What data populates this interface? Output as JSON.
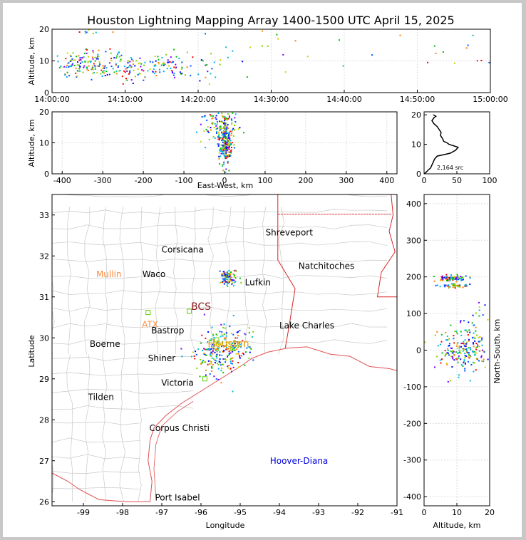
{
  "title": "Houston Lightning Mapping Array 1400-1500 UTC April 15, 2025",
  "colors": {
    "background": "#ffffff",
    "frame": "#c8c8c8",
    "county_lines": "#c8c8c8",
    "state_border": "#d62728",
    "coastline": "#e05050",
    "city_label": "#000000"
  },
  "chart_data": [
    {
      "id": "time-height",
      "type": "scatter",
      "xlabel": "",
      "ylabel": "Altitude, km",
      "x_tick_labels": [
        "14:00:00",
        "14:10:00",
        "14:20:00",
        "14:30:00",
        "14:40:00",
        "14:50:00",
        "15:00:00"
      ],
      "xlim_minutes": [
        0,
        60
      ],
      "ylim": [
        0,
        20
      ],
      "yticks": [
        0,
        10,
        20
      ],
      "grid": true,
      "clusters": [
        {
          "x": 3,
          "y": 9,
          "sx": 1.2,
          "sy": 2.5,
          "n": 60
        },
        {
          "x": 6,
          "y": 9,
          "sx": 1.3,
          "sy": 2.3,
          "n": 70
        },
        {
          "x": 9.5,
          "y": 8.5,
          "sx": 1.4,
          "sy": 2.2,
          "n": 55
        },
        {
          "x": 13,
          "y": 8.5,
          "sx": 1.5,
          "sy": 2.0,
          "n": 50
        },
        {
          "x": 17,
          "y": 8.5,
          "sx": 1.3,
          "sy": 2.5,
          "n": 35
        },
        {
          "x": 21,
          "y": 8,
          "sx": 1.5,
          "sy": 3.0,
          "n": 18
        },
        {
          "x": 27,
          "y": 12,
          "sx": 3.0,
          "sy": 4.0,
          "n": 12
        },
        {
          "x": 36,
          "y": 14,
          "sx": 3.0,
          "sy": 4.0,
          "n": 6
        },
        {
          "x": 52,
          "y": 12,
          "sx": 4.0,
          "sy": 4.0,
          "n": 8
        },
        {
          "x": 58,
          "y": 12,
          "sx": 1.5,
          "sy": 4.0,
          "n": 6
        },
        {
          "x": 5,
          "y": 19.5,
          "sx": 2.0,
          "sy": 0.5,
          "n": 8
        }
      ]
    },
    {
      "id": "east-west-height",
      "type": "scatter",
      "xlabel": "East-West, km",
      "ylabel": "Altitude, km",
      "xlim": [
        -425,
        425
      ],
      "xticks": [
        -400,
        -300,
        -200,
        -100,
        0,
        100,
        200,
        300,
        400
      ],
      "ylim": [
        0,
        20
      ],
      "yticks": [
        0,
        10,
        20
      ],
      "grid": true,
      "clusters": [
        {
          "x": 0,
          "y": 8.5,
          "sx": 4,
          "sy": 1.2,
          "n": 60,
          "dense": true
        },
        {
          "x": 0,
          "y": 11,
          "sx": 10,
          "sy": 4.0,
          "n": 220
        },
        {
          "x": -10,
          "y": 16,
          "sx": 25,
          "sy": 3.0,
          "n": 80
        }
      ]
    },
    {
      "id": "altitude-histogram",
      "type": "line",
      "xlabel": "",
      "ylabel": "",
      "annotation": "2,164 src",
      "xlim": [
        0,
        100
      ],
      "xticks": [
        0,
        50,
        100
      ],
      "ylim": [
        0,
        21
      ],
      "yticks": [
        0,
        10,
        20
      ],
      "profile": [
        [
          0,
          0
        ],
        [
          3,
          0.5
        ],
        [
          6,
          1.2
        ],
        [
          10,
          2
        ],
        [
          12,
          3
        ],
        [
          14,
          4
        ],
        [
          16,
          5
        ],
        [
          20,
          6
        ],
        [
          30,
          6.5
        ],
        [
          40,
          7
        ],
        [
          48,
          8
        ],
        [
          52,
          9
        ],
        [
          45,
          9.5
        ],
        [
          38,
          10
        ],
        [
          35,
          10.5
        ],
        [
          30,
          11
        ],
        [
          28,
          12
        ],
        [
          25,
          13
        ],
        [
          26,
          14
        ],
        [
          23,
          15
        ],
        [
          20,
          16
        ],
        [
          15,
          17
        ],
        [
          12,
          18
        ],
        [
          15,
          19
        ],
        [
          18,
          19.5
        ],
        [
          14,
          20
        ]
      ]
    },
    {
      "id": "plan-view",
      "type": "scatter",
      "xlabel": "Longitude",
      "ylabel": "Latitude",
      "xlim": [
        -99.8,
        -91
      ],
      "xticks": [
        -99,
        -98,
        -97,
        -96,
        -95,
        -94,
        -93,
        -92,
        -91
      ],
      "ylim": [
        25.9,
        33.5
      ],
      "yticks": [
        26,
        27,
        28,
        29,
        30,
        31,
        32,
        33
      ],
      "cities": [
        {
          "name": "Shreveport",
          "lon": -93.75,
          "lat": 32.57,
          "color": "#000000"
        },
        {
          "name": "Corsicana",
          "lon": -96.47,
          "lat": 32.15,
          "color": "#000000"
        },
        {
          "name": "Natchitoches",
          "lon": -92.8,
          "lat": 31.75,
          "color": "#000000"
        },
        {
          "name": "Mullin",
          "lon": -98.35,
          "lat": 31.55,
          "color": "#ff8c40"
        },
        {
          "name": "Waco",
          "lon": -97.2,
          "lat": 31.55,
          "color": "#000000"
        },
        {
          "name": "Lufkin",
          "lon": -94.55,
          "lat": 31.35,
          "color": "#000000"
        },
        {
          "name": "BCS",
          "lon": -96.0,
          "lat": 30.75,
          "color": "#8b1a1a"
        },
        {
          "name": "ATX",
          "lon": -97.3,
          "lat": 30.33,
          "color": "#ff8c40"
        },
        {
          "name": "Bastrop",
          "lon": -96.85,
          "lat": 30.18,
          "color": "#000000"
        },
        {
          "name": "Lake Charles",
          "lon": -93.3,
          "lat": 30.3,
          "color": "#000000"
        },
        {
          "name": "Boerne",
          "lon": -98.45,
          "lat": 29.85,
          "color": "#000000"
        },
        {
          "name": "Houston",
          "lon": -95.3,
          "lat": 29.85,
          "color": "#e8a000"
        },
        {
          "name": "Shiner",
          "lon": -97.0,
          "lat": 29.5,
          "color": "#000000"
        },
        {
          "name": "Victoria",
          "lon": -96.6,
          "lat": 28.9,
          "color": "#000000"
        },
        {
          "name": "Tilden",
          "lon": -98.55,
          "lat": 28.55,
          "color": "#000000"
        },
        {
          "name": "Corpus Christi",
          "lon": -96.55,
          "lat": 27.8,
          "color": "#000000"
        },
        {
          "name": "Hoover-Diana",
          "lon": -93.5,
          "lat": 27.0,
          "color": "#0000dd"
        },
        {
          "name": "Port Isabel",
          "lon": -96.6,
          "lat": 26.1,
          "color": "#000000"
        }
      ],
      "stations": [
        {
          "lon": -97.35,
          "lat": 30.62
        },
        {
          "lon": -96.3,
          "lat": 30.65
        },
        {
          "lon": -95.2,
          "lat": 29.75
        },
        {
          "lon": -95.9,
          "lat": 29.0
        },
        {
          "lon": -95.6,
          "lat": 29.95
        }
      ],
      "clusters": [
        {
          "x": -95.35,
          "y": 31.55,
          "sx": 0.1,
          "sy": 0.06,
          "n": 60
        },
        {
          "x": -95.3,
          "y": 31.38,
          "sx": 0.1,
          "sy": 0.04,
          "n": 35
        },
        {
          "x": -95.55,
          "y": 29.65,
          "sx": 0.3,
          "sy": 0.28,
          "n": 220
        },
        {
          "x": -95.1,
          "y": 29.9,
          "sx": 0.2,
          "sy": 0.2,
          "n": 30
        }
      ]
    },
    {
      "id": "altitude-north-south",
      "type": "scatter",
      "xlabel": "Altitude, km",
      "ylabel": "North-South, km",
      "xlim": [
        0,
        20
      ],
      "xticks": [
        0,
        10,
        20
      ],
      "ylim": [
        -425,
        425
      ],
      "yticks": [
        -400,
        -300,
        -200,
        -100,
        0,
        100,
        200,
        300,
        400
      ],
      "grid": true,
      "clusters": [
        {
          "x": 8.5,
          "y": 198,
          "sx": 2.5,
          "sy": 4,
          "n": 90
        },
        {
          "x": 8.5,
          "y": 178,
          "sx": 2.0,
          "sy": 3,
          "n": 45
        },
        {
          "x": 12,
          "y": 0,
          "sx": 4.5,
          "sy": 30,
          "n": 200
        },
        {
          "x": 16,
          "y": 80,
          "sx": 3.0,
          "sy": 30,
          "n": 20
        }
      ]
    }
  ]
}
